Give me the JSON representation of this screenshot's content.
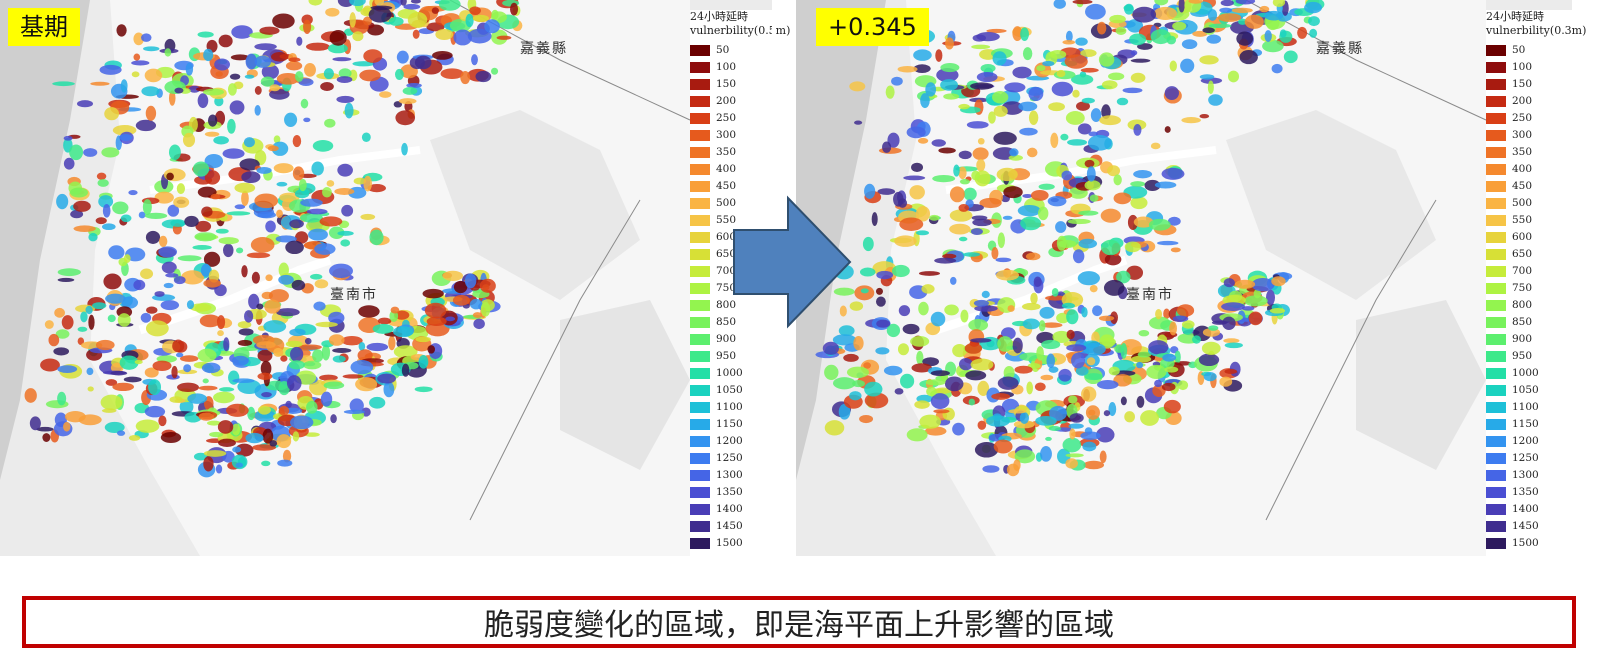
{
  "panels": [
    {
      "badge": "基期",
      "legend_title_1": "24小時延時",
      "legend_title_2": "vulnerbility(0.5m)",
      "county_label": "嘉義縣",
      "city_label": "臺南市"
    },
    {
      "badge": "+0.345",
      "legend_title_1": "24小時延時",
      "legend_title_2": "vulnerbility(0.3m)",
      "county_label": "嘉義縣",
      "city_label": "臺南市"
    }
  ],
  "legend_items": [
    {
      "value": "50",
      "color": "#6b0000"
    },
    {
      "value": "100",
      "color": "#8e0c0c"
    },
    {
      "value": "150",
      "color": "#a81b10"
    },
    {
      "value": "200",
      "color": "#c52a12"
    },
    {
      "value": "250",
      "color": "#d93f16"
    },
    {
      "value": "300",
      "color": "#e65a1d"
    },
    {
      "value": "350",
      "color": "#ef7326"
    },
    {
      "value": "400",
      "color": "#f5892e"
    },
    {
      "value": "450",
      "color": "#f99f38"
    },
    {
      "value": "500",
      "color": "#fab443"
    },
    {
      "value": "550",
      "color": "#f6c446"
    },
    {
      "value": "600",
      "color": "#e7d33c"
    },
    {
      "value": "650",
      "color": "#d7e036"
    },
    {
      "value": "700",
      "color": "#c6ec3a"
    },
    {
      "value": "750",
      "color": "#aef343"
    },
    {
      "value": "800",
      "color": "#93f44f"
    },
    {
      "value": "850",
      "color": "#78f25c"
    },
    {
      "value": "900",
      "color": "#5cef6e"
    },
    {
      "value": "950",
      "color": "#3de98a"
    },
    {
      "value": "1000",
      "color": "#22dfa6"
    },
    {
      "value": "1050",
      "color": "#1ad2bf"
    },
    {
      "value": "1100",
      "color": "#1ec0d8"
    },
    {
      "value": "1150",
      "color": "#27aae8"
    },
    {
      "value": "1200",
      "color": "#3394f0"
    },
    {
      "value": "1250",
      "color": "#3d7cf0"
    },
    {
      "value": "1300",
      "color": "#4565e6"
    },
    {
      "value": "1350",
      "color": "#4a4fd3"
    },
    {
      "value": "1400",
      "color": "#493db6"
    },
    {
      "value": "1450",
      "color": "#3f2d8f"
    },
    {
      "value": "1500",
      "color": "#2d1a5e"
    }
  ],
  "bottom_note": "脆弱度變化的區域，即是海平面上升影響的區域",
  "colors": {
    "badge_bg": "#ffff00",
    "arrow_fill": "#4f81bd",
    "arrow_stroke": "#2f4f6f",
    "note_border": "#c00000"
  }
}
